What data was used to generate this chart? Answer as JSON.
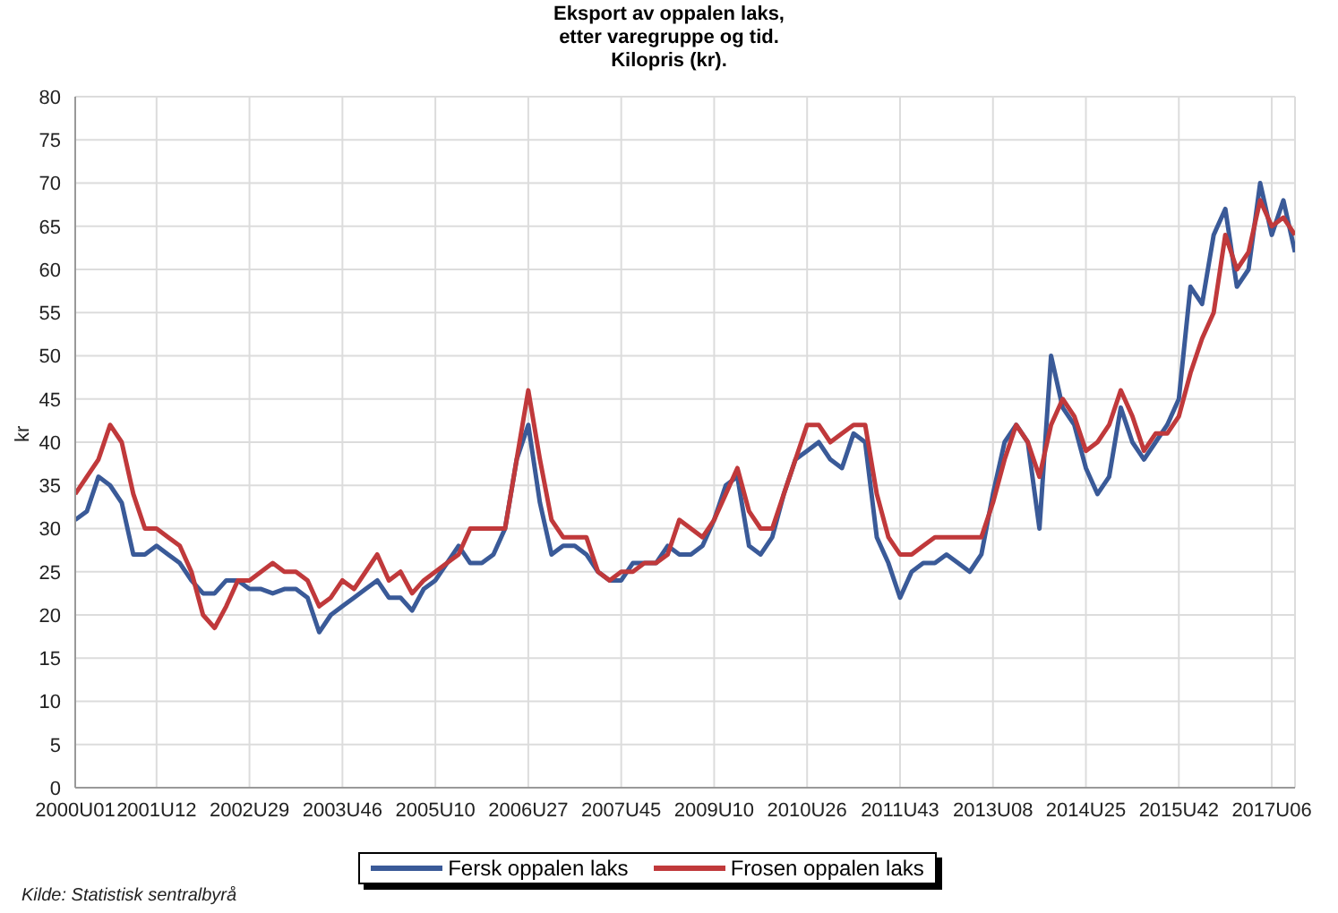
{
  "chart_data": {
    "type": "line",
    "title": "Eksport av oppalen laks,\netter varegruppe og tid.\nKilopris (kr).",
    "ylabel": "kr",
    "annotations": [
      "Kilde: Statistisk sentralbyrå"
    ],
    "categories": [
      "2000U01",
      null,
      null,
      null,
      null,
      null,
      null,
      "2001U12",
      null,
      null,
      null,
      null,
      null,
      null,
      null,
      "2002U29",
      null,
      null,
      null,
      null,
      null,
      null,
      null,
      "2003U46",
      null,
      null,
      null,
      null,
      null,
      null,
      null,
      "2005U10",
      null,
      null,
      null,
      null,
      null,
      null,
      null,
      "2006U27",
      null,
      null,
      null,
      null,
      null,
      null,
      null,
      "2007U45",
      null,
      null,
      null,
      null,
      null,
      null,
      null,
      "2009U10",
      null,
      null,
      null,
      null,
      null,
      null,
      null,
      "2010U26",
      null,
      null,
      null,
      null,
      null,
      null,
      null,
      "2011U43",
      null,
      null,
      null,
      null,
      null,
      null,
      null,
      "2013U08",
      null,
      null,
      null,
      null,
      null,
      null,
      null,
      "2014U25",
      null,
      null,
      null,
      null,
      null,
      null,
      null,
      "2015U42",
      null,
      null,
      null,
      null,
      null,
      null,
      null,
      "2017U06",
      null,
      null
    ],
    "series": [
      {
        "name": "Fersk oppalen laks",
        "color": "#3a5a98",
        "values": [
          31,
          32,
          36,
          35,
          33,
          27,
          27,
          28,
          27,
          26,
          24,
          22.5,
          22.5,
          24,
          24,
          23,
          23,
          22.5,
          23,
          23,
          22,
          18,
          20,
          21,
          22,
          23,
          24,
          22,
          22,
          20.5,
          23,
          24,
          26,
          28,
          26,
          26,
          27,
          30,
          38,
          42,
          33,
          27,
          28,
          28,
          27,
          25,
          24,
          24,
          26,
          26,
          26,
          28,
          27,
          27,
          28,
          31,
          35,
          36,
          28,
          27,
          29,
          34,
          38,
          39,
          40,
          38,
          37,
          41,
          40,
          29,
          26,
          22,
          25,
          26,
          26,
          27,
          26,
          25,
          27,
          34,
          40,
          42,
          40,
          30,
          50,
          44,
          42,
          37,
          34,
          36,
          44,
          40,
          38,
          40,
          42,
          45,
          58,
          56,
          64,
          67,
          58,
          60,
          70,
          64,
          68,
          62
        ]
      },
      {
        "name": "Frosen oppalen laks",
        "color": "#c0393b",
        "values": [
          34,
          36,
          38,
          42,
          40,
          34,
          30,
          30,
          29,
          28,
          25,
          20,
          18.5,
          21,
          24,
          24,
          25,
          26,
          25,
          25,
          24,
          21,
          22,
          24,
          23,
          25,
          27,
          24,
          25,
          22.5,
          24,
          25,
          26,
          27,
          30,
          30,
          30,
          30,
          38,
          46,
          38,
          31,
          29,
          29,
          29,
          25,
          24,
          25,
          25,
          26,
          26,
          27,
          31,
          30,
          29,
          31,
          34,
          37,
          32,
          30,
          30,
          34,
          38,
          42,
          42,
          40,
          41,
          42,
          42,
          34,
          29,
          27,
          27,
          28,
          29,
          29,
          29,
          29,
          29,
          33,
          38,
          42,
          40,
          36,
          42,
          45,
          43,
          39,
          40,
          42,
          46,
          43,
          39,
          41,
          41,
          43,
          48,
          52,
          55,
          64,
          60,
          62,
          68,
          65,
          66,
          64
        ]
      }
    ],
    "ylim": [
      0,
      80
    ],
    "yticks": [
      0,
      5,
      10,
      15,
      20,
      25,
      30,
      35,
      40,
      45,
      50,
      55,
      60,
      65,
      70,
      75,
      80
    ],
    "grid": true,
    "legend": "bottom",
    "marker": "none",
    "line_style": "solid"
  }
}
